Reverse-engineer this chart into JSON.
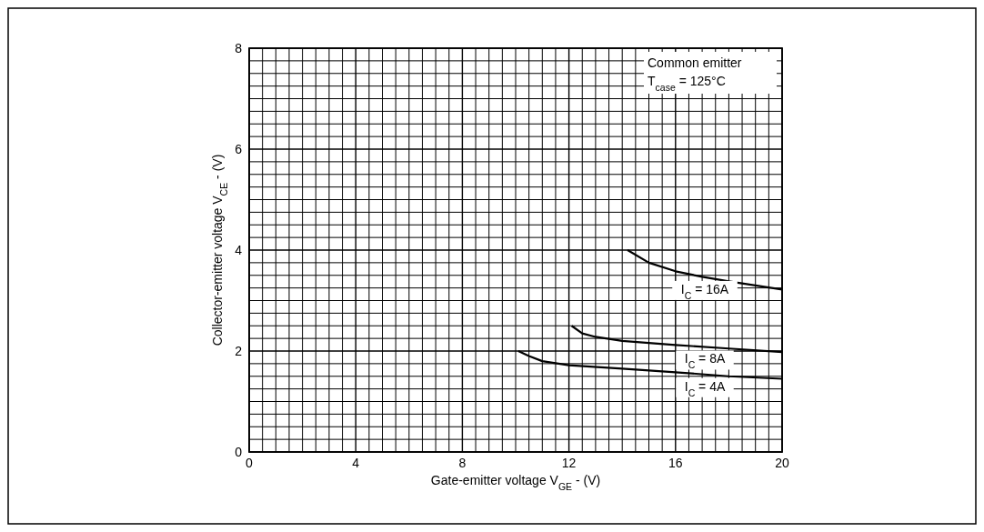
{
  "chart_data": {
    "type": "line",
    "xlabel": "Gate-emitter voltage V$_{GE}$ - (V)",
    "ylabel": "Collector-emitter voltage V$_{CE}$ - (V)",
    "xlim": [
      0,
      20
    ],
    "ylim": [
      0,
      8
    ],
    "xticks": [
      0,
      {
        "value": 0.5,
        "label": null
      },
      {
        "value": 1,
        "label": null
      },
      {
        "value": 1.5,
        "label": null
      },
      {
        "value": 2,
        "label": null
      },
      {
        "value": 2.5,
        "label": null
      },
      {
        "value": 3,
        "label": null
      },
      {
        "value": 3.5,
        "label": null
      },
      4,
      {
        "value": 4.5,
        "label": null
      },
      {
        "value": 5,
        "label": null
      },
      {
        "value": 5.5,
        "label": null
      },
      {
        "value": 6,
        "label": null
      },
      {
        "value": 6.5,
        "label": null
      },
      {
        "value": 7,
        "label": null
      },
      {
        "value": 7.5,
        "label": null
      },
      8,
      {
        "value": 8.5,
        "label": null
      },
      {
        "value": 9,
        "label": null
      },
      {
        "value": 9.5,
        "label": null
      },
      {
        "value": 10,
        "label": null
      },
      {
        "value": 10.5,
        "label": null
      },
      {
        "value": 11,
        "label": null
      },
      {
        "value": 11.5,
        "label": null
      },
      12,
      {
        "value": 12.5,
        "label": null
      },
      {
        "value": 13,
        "label": null
      },
      {
        "value": 13.5,
        "label": null
      },
      {
        "value": 14,
        "label": null
      },
      {
        "value": 14.5,
        "label": null
      },
      {
        "value": 15,
        "label": null
      },
      {
        "value": 15.5,
        "label": null
      },
      16,
      {
        "value": 16.5,
        "label": null
      },
      {
        "value": 17,
        "label": null
      },
      {
        "value": 17.5,
        "label": null
      },
      {
        "value": 18,
        "label": null
      },
      {
        "value": 18.5,
        "label": null
      },
      {
        "value": 19,
        "label": null
      },
      {
        "value": 19.5,
        "label": null
      },
      20
    ],
    "yticks": [
      0,
      {
        "value": 0.25,
        "label": null
      },
      {
        "value": 0.5,
        "label": null
      },
      {
        "value": 0.75,
        "label": null
      },
      {
        "value": 1,
        "label": null
      },
      {
        "value": 1.25,
        "label": null
      },
      {
        "value": 1.5,
        "label": null
      },
      {
        "value": 1.75,
        "label": null
      },
      2,
      {
        "value": 2.25,
        "label": null
      },
      {
        "value": 2.5,
        "label": null
      },
      {
        "value": 2.75,
        "label": null
      },
      {
        "value": 3,
        "label": null
      },
      {
        "value": 3.25,
        "label": null
      },
      {
        "value": 3.5,
        "label": null
      },
      {
        "value": 3.75,
        "label": null
      },
      4,
      {
        "value": 4.25,
        "label": null
      },
      {
        "value": 4.5,
        "label": null
      },
      {
        "value": 4.75,
        "label": null
      },
      {
        "value": 5,
        "label": null
      },
      {
        "value": 5.25,
        "label": null
      },
      {
        "value": 5.5,
        "label": null
      },
      {
        "value": 5.75,
        "label": null
      },
      6,
      {
        "value": 6.25,
        "label": null
      },
      {
        "value": 6.5,
        "label": null
      },
      {
        "value": 6.75,
        "label": null
      },
      {
        "value": 7,
        "label": null
      },
      {
        "value": 7.25,
        "label": null
      },
      {
        "value": 7.5,
        "label": null
      },
      {
        "value": 7.75,
        "label": null
      },
      8
    ],
    "grid": true,
    "marker": "none",
    "line_style": "solid",
    "series": [
      {
        "name": "I$_{C}$ = 16A",
        "color": "#000000",
        "x": [
          14.2,
          15,
          16,
          17,
          18,
          19,
          20
        ],
        "values": [
          4.0,
          3.75,
          3.58,
          3.47,
          3.38,
          3.3,
          3.22
        ]
      },
      {
        "name": "I$_{C}$ = 8A",
        "color": "#000000",
        "x": [
          12.1,
          12.5,
          13,
          14,
          16,
          18,
          20
        ],
        "values": [
          2.5,
          2.35,
          2.28,
          2.2,
          2.12,
          2.05,
          1.98
        ]
      },
      {
        "name": "I$_{C}$ = 4A",
        "color": "#000000",
        "x": [
          10.1,
          10.5,
          11,
          12,
          14,
          16,
          18,
          20
        ],
        "values": [
          2.0,
          1.9,
          1.8,
          1.72,
          1.65,
          1.58,
          1.5,
          1.45
        ]
      }
    ],
    "annotations": [
      "Common emitter",
      "T$_{case}$ = 125°C"
    ]
  }
}
